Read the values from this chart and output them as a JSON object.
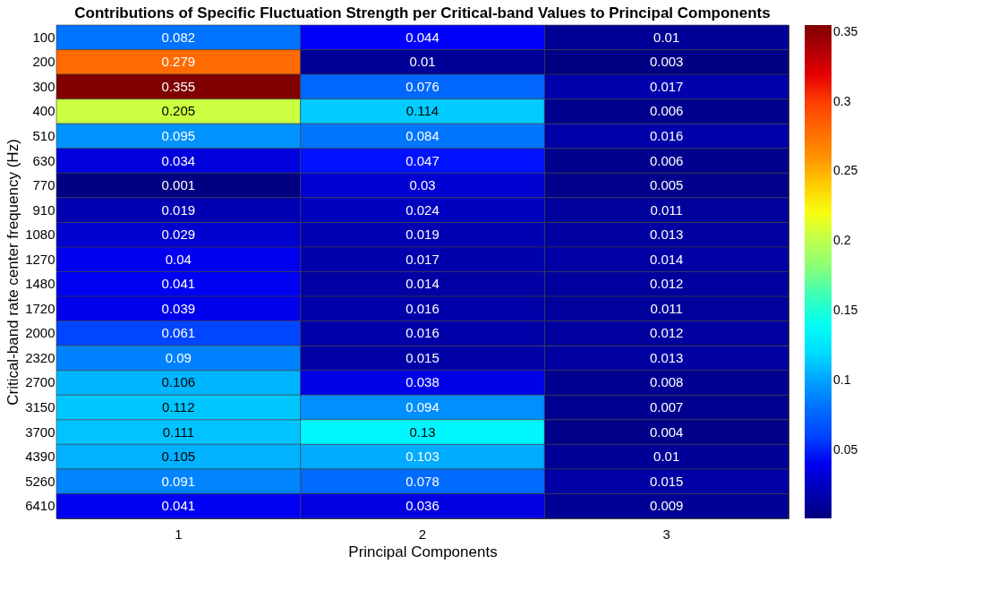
{
  "chart_data": {
    "type": "heatmap",
    "title": "Contributions of Specific Fluctuation Strength per Critical-band Values to Principal Components",
    "xlabel": "Principal Components",
    "ylabel": "Critical-band rate center frequency (Hz)",
    "categories": [
      "1",
      "2",
      "3"
    ],
    "y_categories": [
      "100",
      "200",
      "300",
      "400",
      "510",
      "630",
      "770",
      "910",
      "1080",
      "1270",
      "1480",
      "1720",
      "2000",
      "2320",
      "2700",
      "3150",
      "3700",
      "4390",
      "5260",
      "6410"
    ],
    "cells": [
      [
        0.082,
        0.044,
        0.01
      ],
      [
        0.279,
        0.01,
        0.003
      ],
      [
        0.355,
        0.076,
        0.017
      ],
      [
        0.205,
        0.114,
        0.006
      ],
      [
        0.095,
        0.084,
        0.016
      ],
      [
        0.034,
        0.047,
        0.006
      ],
      [
        0.001,
        0.03,
        0.005
      ],
      [
        0.019,
        0.024,
        0.011
      ],
      [
        0.029,
        0.019,
        0.013
      ],
      [
        0.04,
        0.017,
        0.014
      ],
      [
        0.041,
        0.014,
        0.012
      ],
      [
        0.039,
        0.016,
        0.011
      ],
      [
        0.061,
        0.016,
        0.012
      ],
      [
        0.09,
        0.015,
        0.013
      ],
      [
        0.106,
        0.038,
        0.008
      ],
      [
        0.112,
        0.094,
        0.007
      ],
      [
        0.111,
        0.13,
        0.004
      ],
      [
        0.105,
        0.103,
        0.01
      ],
      [
        0.091,
        0.078,
        0.015
      ],
      [
        0.041,
        0.036,
        0.009
      ]
    ],
    "clim": [
      0.001,
      0.355
    ],
    "cticks": [
      0.05,
      0.1,
      0.15,
      0.2,
      0.25,
      0.3,
      0.35
    ],
    "data_labels": true
  }
}
